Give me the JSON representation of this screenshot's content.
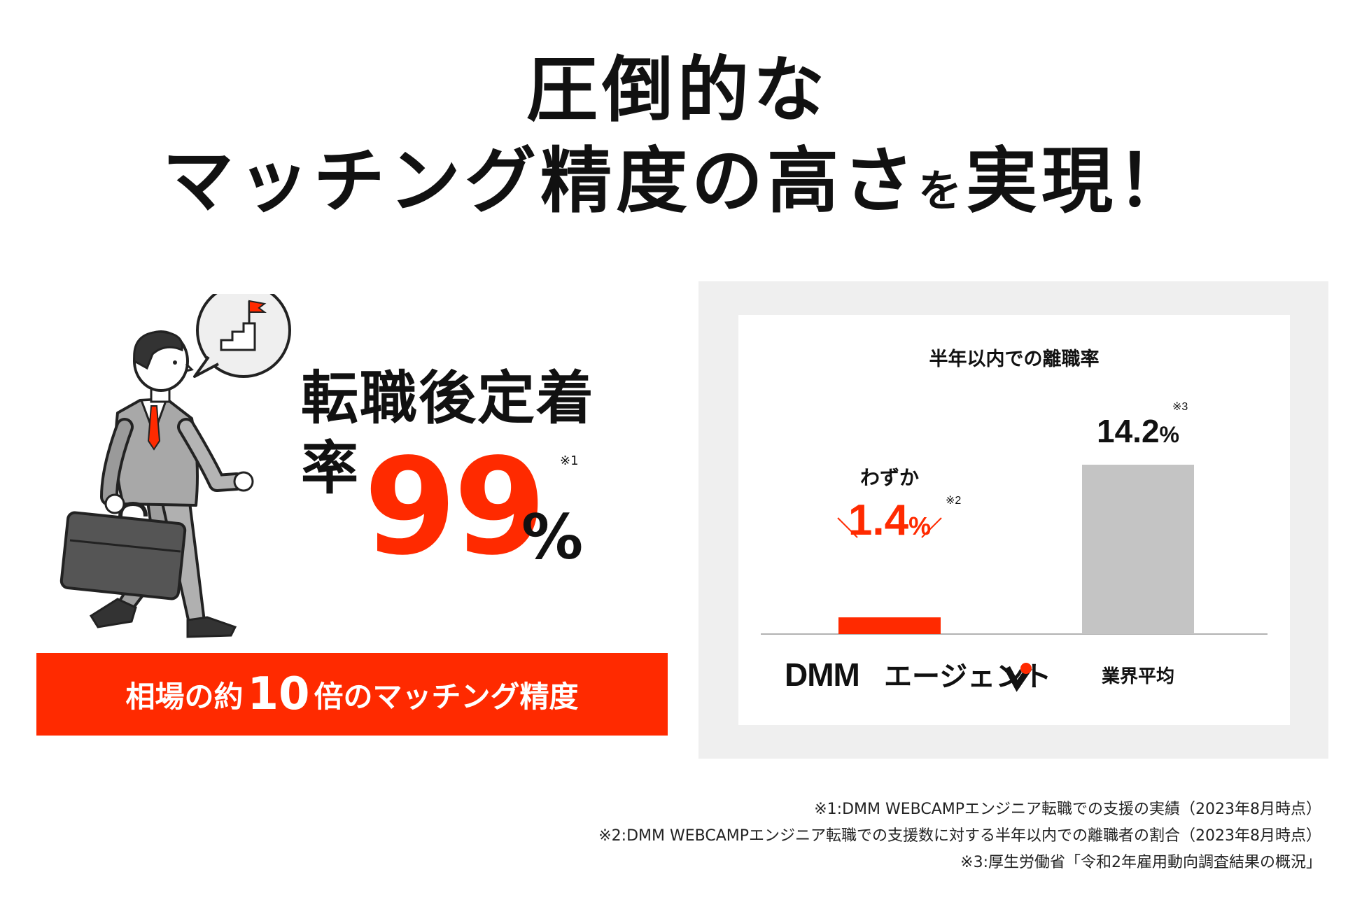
{
  "headline": {
    "line1": "圧倒的な",
    "line2_main": "マッチング精度の高さ",
    "line2_small": "を",
    "line2_end": "実現！"
  },
  "metric": {
    "label": "転職後定着率",
    "value": "99",
    "unit": "%",
    "note": "※1"
  },
  "banner": {
    "prefix": "相場の約",
    "number": "10",
    "suffix": "倍のマッチング精度"
  },
  "colors": {
    "accent": "#ff2a00",
    "bar_gray": "#c4c4c4",
    "panel_bg": "#efefef"
  },
  "chart_data": {
    "type": "bar",
    "title": "半年以内での離職率",
    "categories": [
      "DMM エージェント",
      "業界平均"
    ],
    "values": [
      1.4,
      14.2
    ],
    "value_labels": [
      "1.4",
      "14.2"
    ],
    "unit": "%",
    "notes": [
      "※2",
      "※3"
    ],
    "prefix_label": "わずか",
    "ylim": [
      0,
      14.2
    ],
    "bar_colors": [
      "#ff2a00",
      "#c4c4c4"
    ],
    "grid": false
  },
  "footnotes": [
    "※1:DMM WEBCAMPエンジニア転職での支援の実績（2023年8月時点）",
    "※2:DMM WEBCAMPエンジニア転職での支援数に対する半年以内での離職者の割合（2023年8月時点）",
    "※3:厚生労働省「令和2年雇用動向調査結果の概況」"
  ]
}
